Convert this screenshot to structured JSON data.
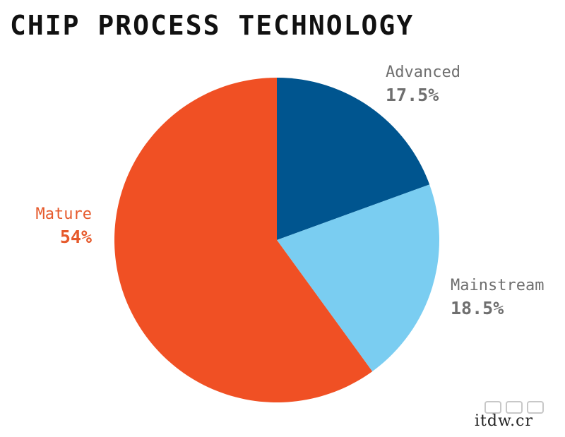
{
  "chart_data": {
    "type": "pie",
    "title": "CHIP PROCESS TECHNOLOGY",
    "slices": [
      {
        "label": "Advanced",
        "value": 17.5,
        "display": "17.5%",
        "color": "#00558f"
      },
      {
        "label": "Mainstream",
        "value": 18.5,
        "display": "18.5%",
        "color": "#7acdf1"
      },
      {
        "label": "Mature",
        "value": 54,
        "display": "54%",
        "color": "#f05024"
      }
    ],
    "legend": "none"
  },
  "watermark": {
    "text": "itdw.cr"
  }
}
